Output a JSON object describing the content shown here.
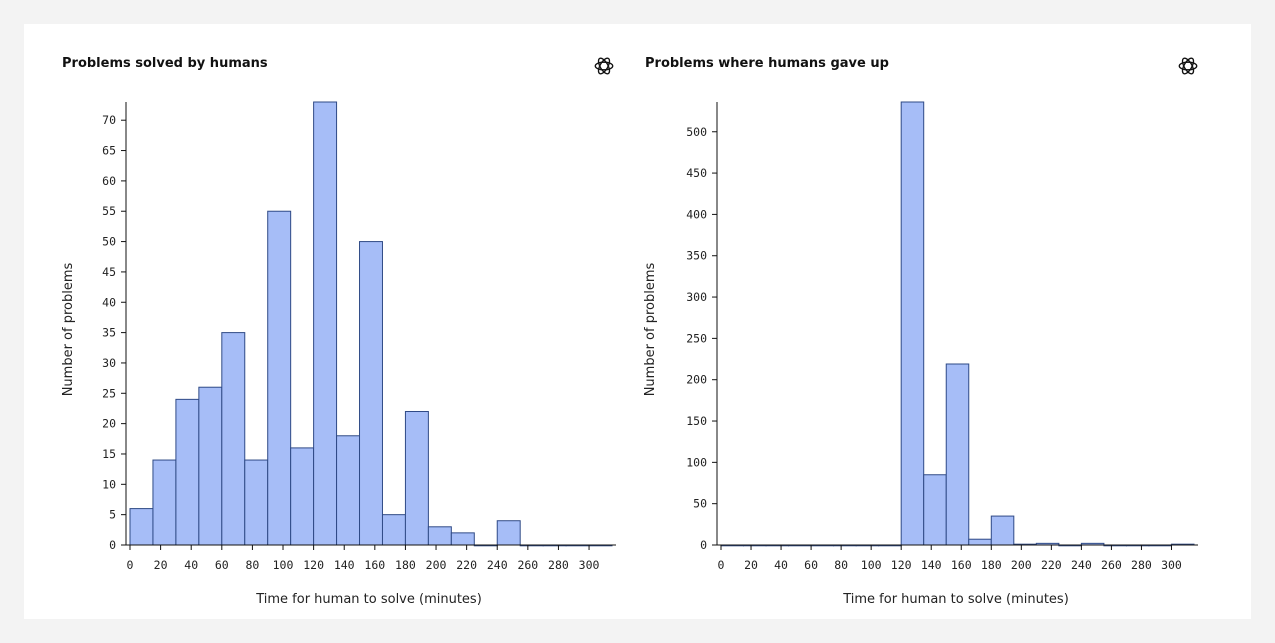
{
  "colors": {
    "bar_fill": "#a6bdf7",
    "bar_stroke": "#2f4a86",
    "axis": "#111111"
  },
  "brand_icon": "openai-logo-icon",
  "chart_data": [
    {
      "type": "bar",
      "title": "Problems solved by humans",
      "xlabel": "Time for human to solve (minutes)",
      "ylabel": "Number of problems",
      "bin_width": 15,
      "bin_starts": [
        0,
        15,
        30,
        45,
        60,
        75,
        90,
        105,
        120,
        135,
        150,
        165,
        180,
        195,
        210,
        225,
        240,
        255,
        270,
        285,
        300
      ],
      "values": [
        6,
        14,
        24,
        26,
        35,
        14,
        55,
        16,
        73,
        18,
        50,
        5,
        22,
        3,
        2,
        0,
        4,
        0,
        0,
        0,
        0
      ],
      "xlim": [
        0,
        315
      ],
      "ylim": [
        0,
        73
      ],
      "x_ticks": [
        0,
        20,
        40,
        60,
        80,
        100,
        120,
        140,
        160,
        180,
        200,
        220,
        240,
        260,
        280,
        300
      ],
      "y_ticks": [
        0,
        5,
        10,
        15,
        20,
        25,
        30,
        35,
        40,
        45,
        50,
        55,
        60,
        65,
        70
      ],
      "grid": false
    },
    {
      "type": "bar",
      "title": "Problems where humans gave up",
      "xlabel": "Time for human to solve (minutes)",
      "ylabel": "Number of problems",
      "bin_width": 15,
      "bin_starts": [
        0,
        15,
        30,
        45,
        60,
        75,
        90,
        105,
        120,
        135,
        150,
        165,
        180,
        195,
        210,
        225,
        240,
        255,
        270,
        285,
        300
      ],
      "values": [
        0,
        0,
        0,
        0,
        0,
        0,
        0,
        0,
        536,
        85,
        219,
        7,
        35,
        1,
        2,
        0,
        2,
        0,
        0,
        0,
        1
      ],
      "xlim": [
        0,
        315
      ],
      "ylim": [
        0,
        536
      ],
      "x_ticks": [
        0,
        20,
        40,
        60,
        80,
        100,
        120,
        140,
        160,
        180,
        200,
        220,
        240,
        260,
        280,
        300
      ],
      "y_ticks": [
        0,
        50,
        100,
        150,
        200,
        250,
        300,
        350,
        400,
        450,
        500
      ],
      "grid": false
    }
  ]
}
